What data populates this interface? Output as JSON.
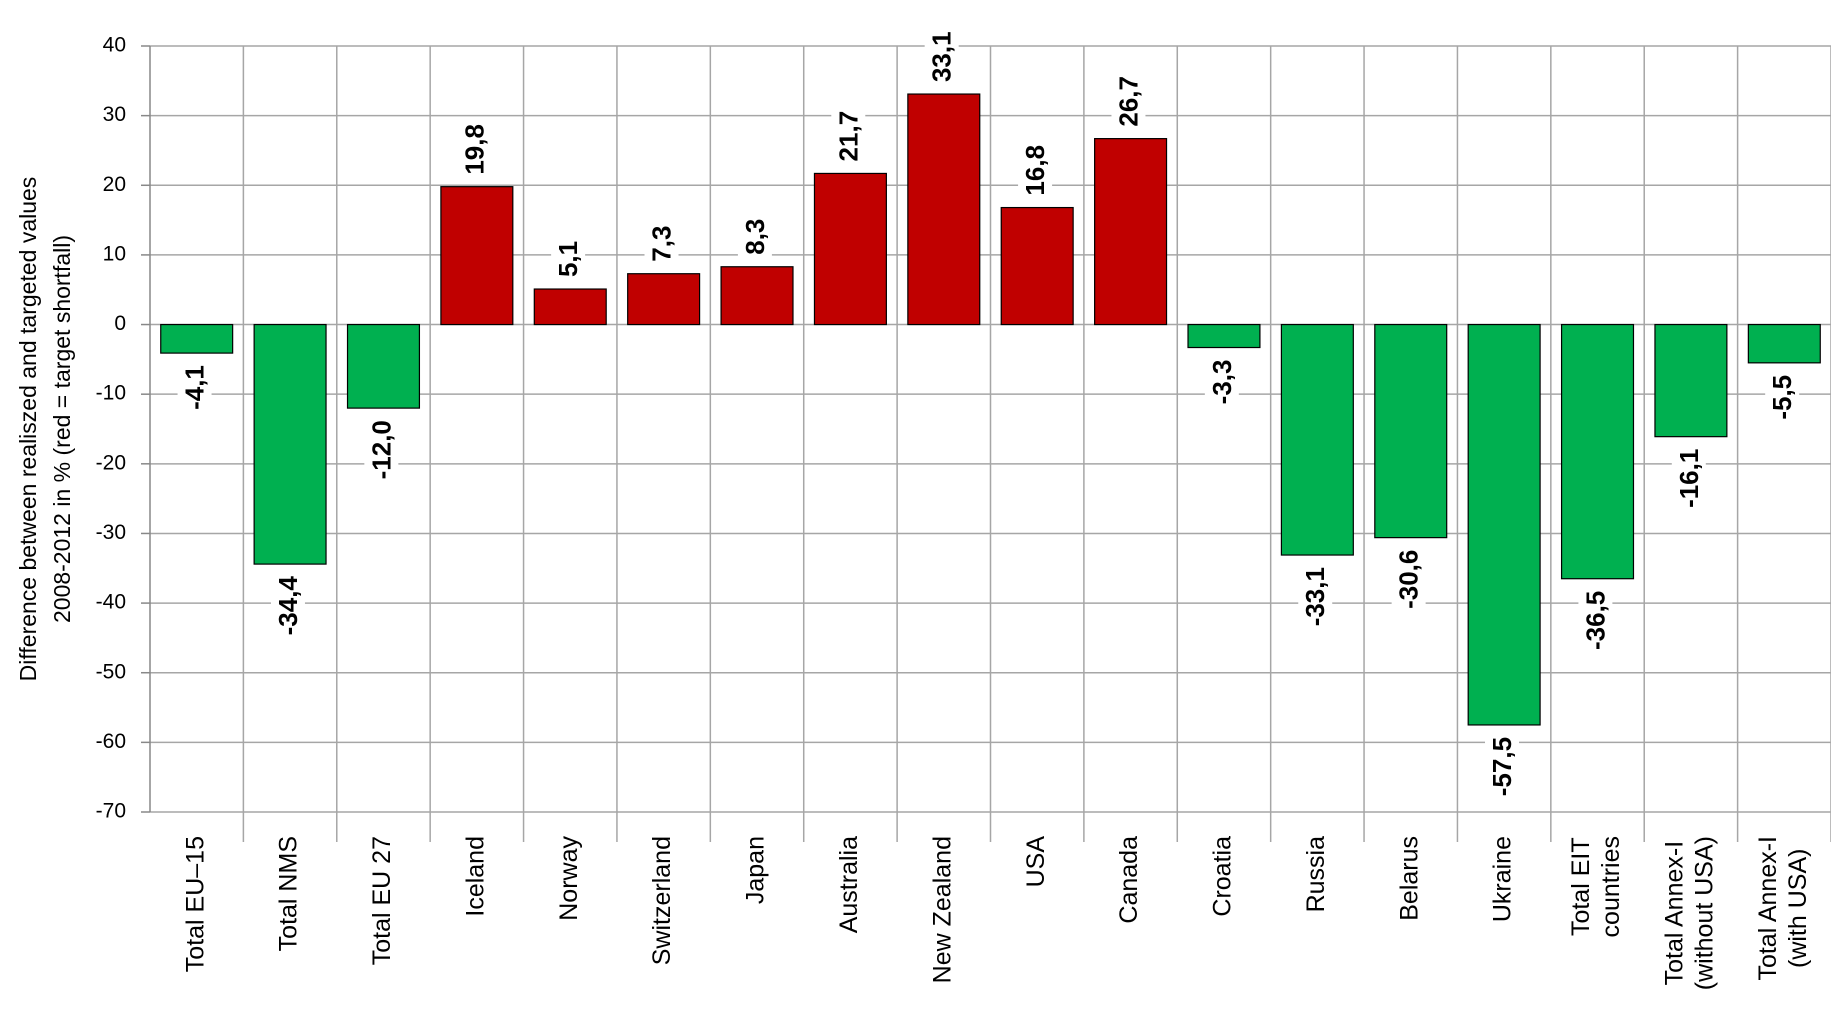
{
  "chart_data": {
    "type": "bar",
    "y_label": [
      "Difference between realiszed and targeted values",
      "2008-2012  in %  (red = target shortfall)"
    ],
    "categories": [
      "Total EU–15",
      "Total NMS",
      "Total EU 27",
      "Iceland",
      "Norway",
      "Switzerland",
      "Japan",
      "Australia",
      "New Zealand",
      "USA",
      "Canada",
      "Croatia",
      "Russia",
      "Belarus",
      "Ukraine",
      "Total EIT\ncountries",
      "Total Annex-I\n(without USA)",
      "Total Annex-I\n(with USA)"
    ],
    "values": [
      -4.1,
      -34.4,
      -12.0,
      19.8,
      5.1,
      7.3,
      8.3,
      21.7,
      33.1,
      16.8,
      26.7,
      -3.3,
      -33.1,
      -30.6,
      -57.5,
      -36.5,
      -16.1,
      -5.5
    ],
    "value_labels": [
      "-4,1",
      "-34,4",
      "-12,0",
      "19,8",
      "5,1",
      "7,3",
      "8,3",
      "21,7",
      "33,1",
      "16,8",
      "26,7",
      "-3,3",
      "-33,1",
      "-30,6",
      "-57,5",
      "-36,5",
      "-16,1",
      "-5,5"
    ],
    "positive_color": "#c00000",
    "negative_color": "#00b050",
    "ylim": [
      -70,
      40
    ],
    "yticks": [
      40,
      30,
      20,
      10,
      0,
      -10,
      -20,
      -30,
      -40,
      -50,
      -60,
      -70
    ],
    "grid": true
  }
}
